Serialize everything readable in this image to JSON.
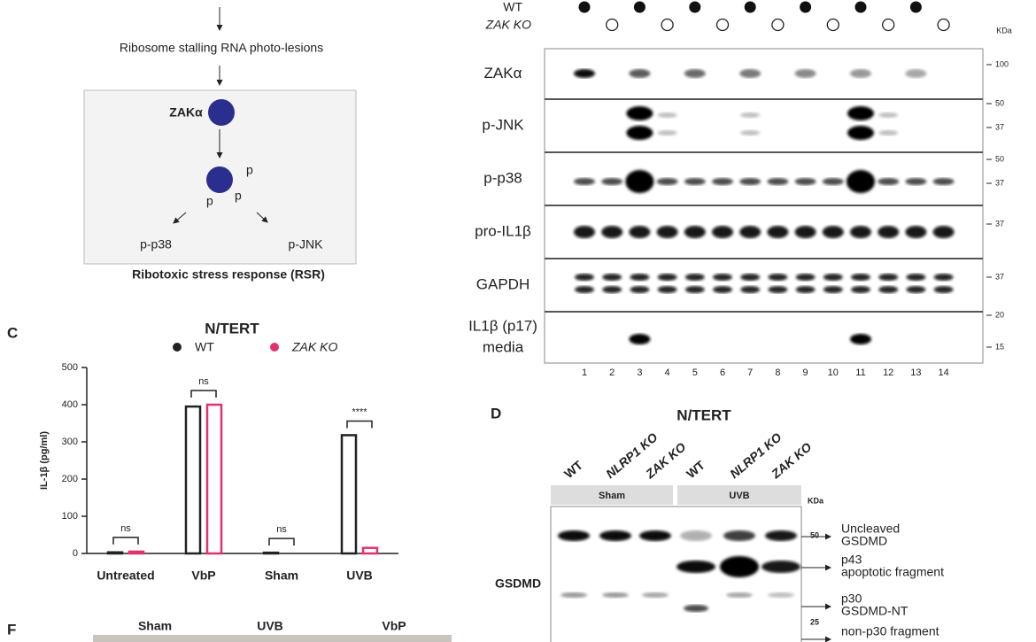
{
  "panel_labels": [
    "C",
    "D",
    "F"
  ],
  "pathway": {
    "trigger": "Ribosome stalling RNA photo-lesions",
    "kinase": "ZAKα",
    "phospho": [
      "p",
      "p",
      "p"
    ],
    "outputs": [
      "p-p38",
      "p-JNK"
    ],
    "caption": "Ribotoxic stress response (RSR)"
  },
  "chart_data": {
    "type": "bar",
    "title": "N/TERT",
    "y_label": "IL-1β (pg/ml)",
    "categories": [
      "Untreated",
      "VbP",
      "Sham",
      "UVB"
    ],
    "series": [
      {
        "name": "WT",
        "color": "#222222",
        "values": [
          3,
          395,
          2,
          318
        ]
      },
      {
        "name": "ZAK KO",
        "color": "#e0336e",
        "values": [
          5,
          400,
          0,
          15
        ]
      }
    ],
    "significance": [
      "ns",
      "ns",
      "ns",
      "****"
    ],
    "ylim": [
      0,
      500
    ],
    "yticks": [
      0,
      100,
      200,
      300,
      400,
      500
    ]
  },
  "blot": {
    "genotypes": [
      "WT",
      "ZAK KO"
    ],
    "unit": "KDa",
    "rows": [
      [
        "ZAKα"
      ],
      [
        "p-JNK"
      ],
      [
        "p-p38"
      ],
      [
        "pro-IL1β"
      ],
      [
        "GAPDH"
      ],
      [
        "IL1β (p17)",
        "media"
      ]
    ],
    "markers": [
      100,
      50,
      37,
      50,
      37,
      37,
      37,
      20,
      15
    ],
    "lanes": [
      1,
      2,
      3,
      4,
      5,
      6,
      7,
      8,
      9,
      10,
      11,
      12,
      13,
      14
    ]
  },
  "panel_d": {
    "title": "N/TERT",
    "columns": [
      "WT",
      "NLRP1 KO",
      "ZAK KO",
      "WT",
      "NLRP1 KO",
      "ZAK KO"
    ],
    "groups": [
      "Sham",
      "UVB"
    ],
    "unit": "KDa",
    "protein": "GSDMD",
    "markers": [
      50,
      25
    ],
    "annotations": [
      [
        "Uncleaved",
        "GSDMD"
      ],
      [
        "p43",
        "apoptotic fragment"
      ],
      [
        "p30",
        "GSDMD-NT"
      ],
      [
        "non-p30 fragment"
      ]
    ]
  },
  "panel_f": {
    "columns": [
      "Sham",
      "UVB",
      "VbP"
    ]
  }
}
